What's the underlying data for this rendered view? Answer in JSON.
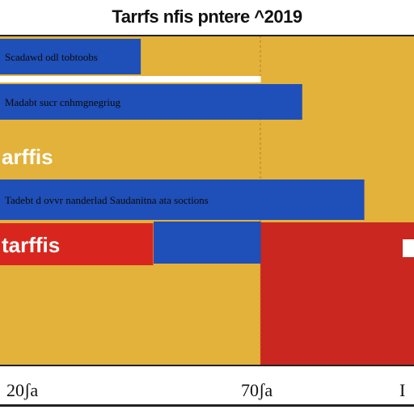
{
  "chart_data": {
    "type": "bar",
    "title": "Tarrfs nfis pntere ^2019",
    "bars": [
      {
        "label": "Scadawd odl tobtoobs",
        "value": 0.34,
        "color": "#1f4fb8"
      },
      {
        "label": "",
        "value": 0.63,
        "color": "#ffffff"
      },
      {
        "label": "Madabt sucr cnhmgnegriug",
        "value": 0.73,
        "color": "#1f4fb8"
      },
      {
        "label": "arffis",
        "value": 0.0,
        "color": "#e2b23a"
      },
      {
        "label": "Tadebt d ovvr nanderlad Saudanitna ata soctions",
        "value": 0.88,
        "color": "#1f4fb8"
      },
      {
        "label": "tarffis",
        "value": 0.37,
        "color": "#d8261f"
      },
      {
        "label": "",
        "value": 0.63,
        "color": "#1f4fb8"
      }
    ],
    "x_tick_labels": [
      "20ʃa",
      "70ʃa",
      "I"
    ],
    "background_color": "#e2b23a",
    "highlight_color": "#c9271f"
  }
}
